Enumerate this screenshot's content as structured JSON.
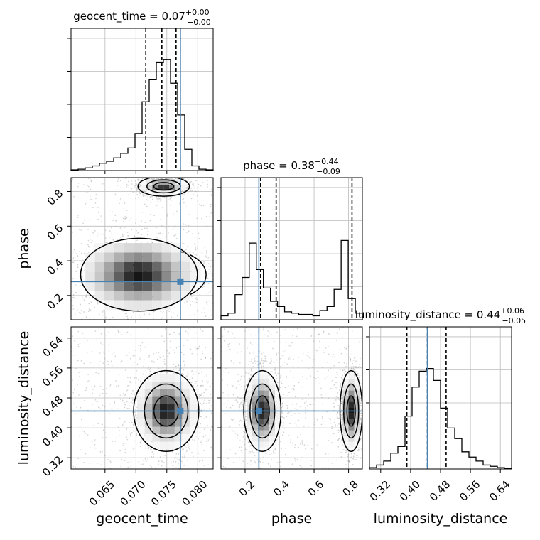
{
  "chart_data": {
    "type": "corner",
    "parameters": [
      {
        "key": "geocent_time",
        "label": "geocent_time",
        "truth": 0.0772,
        "range": [
          0.0595,
          0.0825
        ],
        "ticks": [
          {
            "v": 0.065,
            "t": "0.065"
          },
          {
            "v": 0.07,
            "t": "0.070"
          },
          {
            "v": 0.075,
            "t": "0.075"
          },
          {
            "v": 0.08,
            "t": "0.080"
          }
        ],
        "title": {
          "main": "geocent_time = 0.07",
          "plus": "+0.00",
          "minus": "−0.00"
        },
        "quantiles": [
          0.0716,
          0.0742,
          0.0765
        ],
        "hist": [
          0.005,
          0.01,
          0.02,
          0.035,
          0.055,
          0.07,
          0.095,
          0.13,
          0.17,
          0.28,
          0.52,
          0.69,
          0.82,
          0.84,
          0.66,
          0.42,
          0.16,
          0.035,
          0.01,
          0.005
        ]
      },
      {
        "key": "phase",
        "label": "phase",
        "truth": 0.28,
        "range": [
          0.06,
          0.88
        ],
        "ticks": [
          {
            "v": 0.2,
            "t": "0.2"
          },
          {
            "v": 0.4,
            "t": "0.4"
          },
          {
            "v": 0.6,
            "t": "0.6"
          },
          {
            "v": 0.8,
            "t": "0.8"
          }
        ],
        "title": {
          "main": "phase = 0.38",
          "plus": "+0.44",
          "minus": "−0.09"
        },
        "quantiles": [
          0.29,
          0.38,
          0.82
        ],
        "hist": [
          0.03,
          0.05,
          0.19,
          0.32,
          0.58,
          0.38,
          0.24,
          0.14,
          0.1,
          0.06,
          0.05,
          0.04,
          0.04,
          0.03,
          0.07,
          0.1,
          0.23,
          0.6,
          0.16,
          0.05
        ]
      },
      {
        "key": "luminosity_distance",
        "label": "luminosity_distance",
        "truth": 0.445,
        "range": [
          0.29,
          0.67
        ],
        "ticks": [
          {
            "v": 0.32,
            "t": "0.32"
          },
          {
            "v": 0.4,
            "t": "0.40"
          },
          {
            "v": 0.48,
            "t": "0.48"
          },
          {
            "v": 0.56,
            "t": "0.56"
          },
          {
            "v": 0.64,
            "t": "0.64"
          }
        ],
        "title": {
          "main": "luminosity_distance = 0.44",
          "plus": "+0.06",
          "minus": "−0.05"
        },
        "quantiles": [
          0.39,
          0.445,
          0.495
        ],
        "hist": [
          0.01,
          0.03,
          0.06,
          0.12,
          0.17,
          0.4,
          0.62,
          0.74,
          0.76,
          0.67,
          0.46,
          0.31,
          0.23,
          0.13,
          0.09,
          0.06,
          0.03,
          0.02,
          0.01,
          0.005
        ]
      }
    ],
    "pairs": [
      {
        "x": "geocent_time",
        "y": "phase",
        "modes": [
          {
            "cx": 0.0745,
            "cy": 0.83,
            "rx": 0.0016,
            "ry": 0.022,
            "levels": [
              1.0,
              1.7,
              2.6
            ]
          },
          {
            "cx": 0.0752,
            "cy": 0.32,
            "rx": 0.0022,
            "ry": 0.05,
            "levels": [
              1.0,
              1.7,
              2.8
            ]
          },
          {
            "cx": 0.0705,
            "cy": 0.32,
            "rx": 0.0045,
            "ry": 0.1,
            "levels": [
              2.1
            ]
          }
        ]
      },
      {
        "x": "geocent_time",
        "y": "luminosity_distance",
        "modes": [
          {
            "cx": 0.0749,
            "cy": 0.445,
            "rx": 0.0022,
            "ry": 0.045,
            "levels": [
              0.9,
              1.6,
              2.4
            ]
          }
        ]
      },
      {
        "x": "phase",
        "y": "luminosity_distance",
        "modes": [
          {
            "cx": 0.3,
            "cy": 0.445,
            "rx": 0.045,
            "ry": 0.045,
            "levels": [
              0.9,
              1.6,
              2.4
            ]
          },
          {
            "cx": 0.815,
            "cy": 0.445,
            "rx": 0.027,
            "ry": 0.045,
            "levels": [
              0.9,
              1.6,
              2.4
            ]
          }
        ]
      }
    ],
    "colors": {
      "truth": "#4682b4",
      "hist": "#000000",
      "scatter": "#9e9e9e",
      "grid": "#bbbbbb"
    },
    "grid": true
  }
}
